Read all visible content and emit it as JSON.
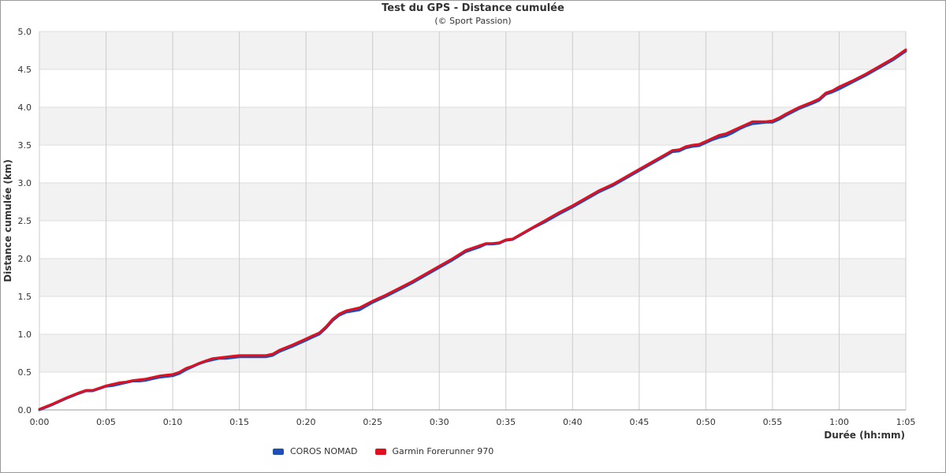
{
  "chart_data": {
    "type": "line",
    "title": "Test du GPS - Distance cumulée",
    "subtitle": "(© Sport Passion)",
    "xlabel": "Durée (hh:mm)",
    "ylabel": "Distance cumulée (km)",
    "xlim": [
      0,
      65
    ],
    "ylim": [
      0,
      5.0
    ],
    "x_ticks": [
      "0:00",
      "0:05",
      "0:10",
      "0:15",
      "0:20",
      "0:25",
      "0:30",
      "0:35",
      "0:40",
      "0:45",
      "0:50",
      "0:55",
      "1:00",
      "1:05"
    ],
    "y_ticks": [
      "0.0",
      "0.5",
      "1.0",
      "1.5",
      "2.0",
      "2.5",
      "3.0",
      "3.5",
      "4.0",
      "4.5",
      "5.0"
    ],
    "x_unit": "minutes",
    "grid": true,
    "legend_position": "bottom-left",
    "colors": {
      "coros": "#1f4fb5",
      "garmin": "#e01020"
    },
    "series": [
      {
        "name": "COROS NOMAD",
        "color": "#1f4fb5",
        "points": [
          [
            0,
            0
          ],
          [
            1,
            0.07
          ],
          [
            2,
            0.15
          ],
          [
            3,
            0.22
          ],
          [
            3.5,
            0.25
          ],
          [
            4,
            0.25
          ],
          [
            4.5,
            0.28
          ],
          [
            5,
            0.31
          ],
          [
            5.5,
            0.32
          ],
          [
            6,
            0.34
          ],
          [
            6.5,
            0.36
          ],
          [
            7,
            0.38
          ],
          [
            7.5,
            0.38
          ],
          [
            8,
            0.39
          ],
          [
            8.5,
            0.41
          ],
          [
            9,
            0.43
          ],
          [
            9.5,
            0.44
          ],
          [
            10,
            0.45
          ],
          [
            10.5,
            0.48
          ],
          [
            11,
            0.53
          ],
          [
            11.5,
            0.57
          ],
          [
            12,
            0.61
          ],
          [
            12.5,
            0.64
          ],
          [
            13,
            0.66
          ],
          [
            13.5,
            0.68
          ],
          [
            14,
            0.68
          ],
          [
            14.5,
            0.69
          ],
          [
            15,
            0.7
          ],
          [
            16,
            0.7
          ],
          [
            17,
            0.7
          ],
          [
            17.5,
            0.72
          ],
          [
            18,
            0.77
          ],
          [
            19,
            0.84
          ],
          [
            20,
            0.92
          ],
          [
            20.5,
            0.96
          ],
          [
            21,
            1.0
          ],
          [
            21.5,
            1.08
          ],
          [
            22,
            1.18
          ],
          [
            22.5,
            1.25
          ],
          [
            23,
            1.29
          ],
          [
            24,
            1.32
          ],
          [
            25,
            1.42
          ],
          [
            26,
            1.5
          ],
          [
            27,
            1.59
          ],
          [
            28,
            1.68
          ],
          [
            29,
            1.78
          ],
          [
            30,
            1.88
          ],
          [
            31,
            1.98
          ],
          [
            32,
            2.09
          ],
          [
            32.5,
            2.12
          ],
          [
            33,
            2.15
          ],
          [
            33.5,
            2.19
          ],
          [
            34,
            2.19
          ],
          [
            34.5,
            2.2
          ],
          [
            35,
            2.24
          ],
          [
            35.5,
            2.25
          ],
          [
            36,
            2.3
          ],
          [
            37,
            2.4
          ],
          [
            38,
            2.49
          ],
          [
            39,
            2.59
          ],
          [
            40,
            2.68
          ],
          [
            41,
            2.78
          ],
          [
            42,
            2.88
          ],
          [
            43,
            2.96
          ],
          [
            44,
            3.06
          ],
          [
            45,
            3.16
          ],
          [
            46,
            3.26
          ],
          [
            47,
            3.36
          ],
          [
            47.5,
            3.41
          ],
          [
            48,
            3.42
          ],
          [
            48.5,
            3.46
          ],
          [
            49,
            3.48
          ],
          [
            49.5,
            3.49
          ],
          [
            50,
            3.53
          ],
          [
            50.5,
            3.57
          ],
          [
            51,
            3.6
          ],
          [
            51.5,
            3.62
          ],
          [
            52,
            3.66
          ],
          [
            52.5,
            3.71
          ],
          [
            53,
            3.75
          ],
          [
            53.5,
            3.78
          ],
          [
            54,
            3.79
          ],
          [
            54.5,
            3.8
          ],
          [
            55,
            3.8
          ],
          [
            55.5,
            3.84
          ],
          [
            56,
            3.89
          ],
          [
            57,
            3.98
          ],
          [
            58,
            4.05
          ],
          [
            58.5,
            4.09
          ],
          [
            59,
            4.17
          ],
          [
            59.5,
            4.2
          ],
          [
            60,
            4.24
          ],
          [
            61,
            4.33
          ],
          [
            62,
            4.42
          ],
          [
            63,
            4.52
          ],
          [
            64,
            4.62
          ],
          [
            65,
            4.74
          ]
        ]
      },
      {
        "name": "Garmin Forerunner 970",
        "color": "#e01020",
        "points": [
          [
            0,
            0.01
          ],
          [
            1,
            0.08
          ],
          [
            2,
            0.16
          ],
          [
            3,
            0.23
          ],
          [
            3.5,
            0.26
          ],
          [
            4,
            0.26
          ],
          [
            4.5,
            0.29
          ],
          [
            5,
            0.32
          ],
          [
            5.5,
            0.34
          ],
          [
            6,
            0.36
          ],
          [
            6.5,
            0.37
          ],
          [
            7,
            0.39
          ],
          [
            7.5,
            0.4
          ],
          [
            8,
            0.41
          ],
          [
            8.5,
            0.43
          ],
          [
            9,
            0.45
          ],
          [
            9.5,
            0.46
          ],
          [
            10,
            0.47
          ],
          [
            10.5,
            0.5
          ],
          [
            11,
            0.55
          ],
          [
            11.5,
            0.58
          ],
          [
            12,
            0.62
          ],
          [
            12.5,
            0.65
          ],
          [
            13,
            0.68
          ],
          [
            13.5,
            0.69
          ],
          [
            14,
            0.7
          ],
          [
            14.5,
            0.71
          ],
          [
            15,
            0.72
          ],
          [
            16,
            0.72
          ],
          [
            17,
            0.72
          ],
          [
            17.5,
            0.74
          ],
          [
            18,
            0.79
          ],
          [
            19,
            0.86
          ],
          [
            20,
            0.94
          ],
          [
            20.5,
            0.98
          ],
          [
            21,
            1.02
          ],
          [
            21.5,
            1.1
          ],
          [
            22,
            1.2
          ],
          [
            22.5,
            1.27
          ],
          [
            23,
            1.31
          ],
          [
            24,
            1.35
          ],
          [
            25,
            1.44
          ],
          [
            26,
            1.52
          ],
          [
            27,
            1.61
          ],
          [
            28,
            1.7
          ],
          [
            29,
            1.8
          ],
          [
            30,
            1.9
          ],
          [
            31,
            2.0
          ],
          [
            32,
            2.11
          ],
          [
            32.5,
            2.14
          ],
          [
            33,
            2.17
          ],
          [
            33.5,
            2.2
          ],
          [
            34,
            2.2
          ],
          [
            34.5,
            2.21
          ],
          [
            35,
            2.25
          ],
          [
            35.5,
            2.26
          ],
          [
            36,
            2.31
          ],
          [
            37,
            2.41
          ],
          [
            38,
            2.51
          ],
          [
            39,
            2.61
          ],
          [
            40,
            2.7
          ],
          [
            41,
            2.8
          ],
          [
            42,
            2.9
          ],
          [
            43,
            2.98
          ],
          [
            44,
            3.08
          ],
          [
            45,
            3.18
          ],
          [
            46,
            3.28
          ],
          [
            47,
            3.38
          ],
          [
            47.5,
            3.43
          ],
          [
            48,
            3.44
          ],
          [
            48.5,
            3.48
          ],
          [
            49,
            3.5
          ],
          [
            49.5,
            3.51
          ],
          [
            50,
            3.55
          ],
          [
            50.5,
            3.59
          ],
          [
            51,
            3.63
          ],
          [
            51.5,
            3.65
          ],
          [
            52,
            3.69
          ],
          [
            52.5,
            3.73
          ],
          [
            53,
            3.77
          ],
          [
            53.5,
            3.81
          ],
          [
            54,
            3.81
          ],
          [
            54.5,
            3.81
          ],
          [
            55,
            3.82
          ],
          [
            55.5,
            3.86
          ],
          [
            56,
            3.91
          ],
          [
            57,
            4.0
          ],
          [
            58,
            4.07
          ],
          [
            58.5,
            4.11
          ],
          [
            59,
            4.19
          ],
          [
            59.5,
            4.22
          ],
          [
            60,
            4.27
          ],
          [
            61,
            4.35
          ],
          [
            62,
            4.44
          ],
          [
            63,
            4.54
          ],
          [
            64,
            4.64
          ],
          [
            65,
            4.76
          ]
        ]
      }
    ]
  }
}
